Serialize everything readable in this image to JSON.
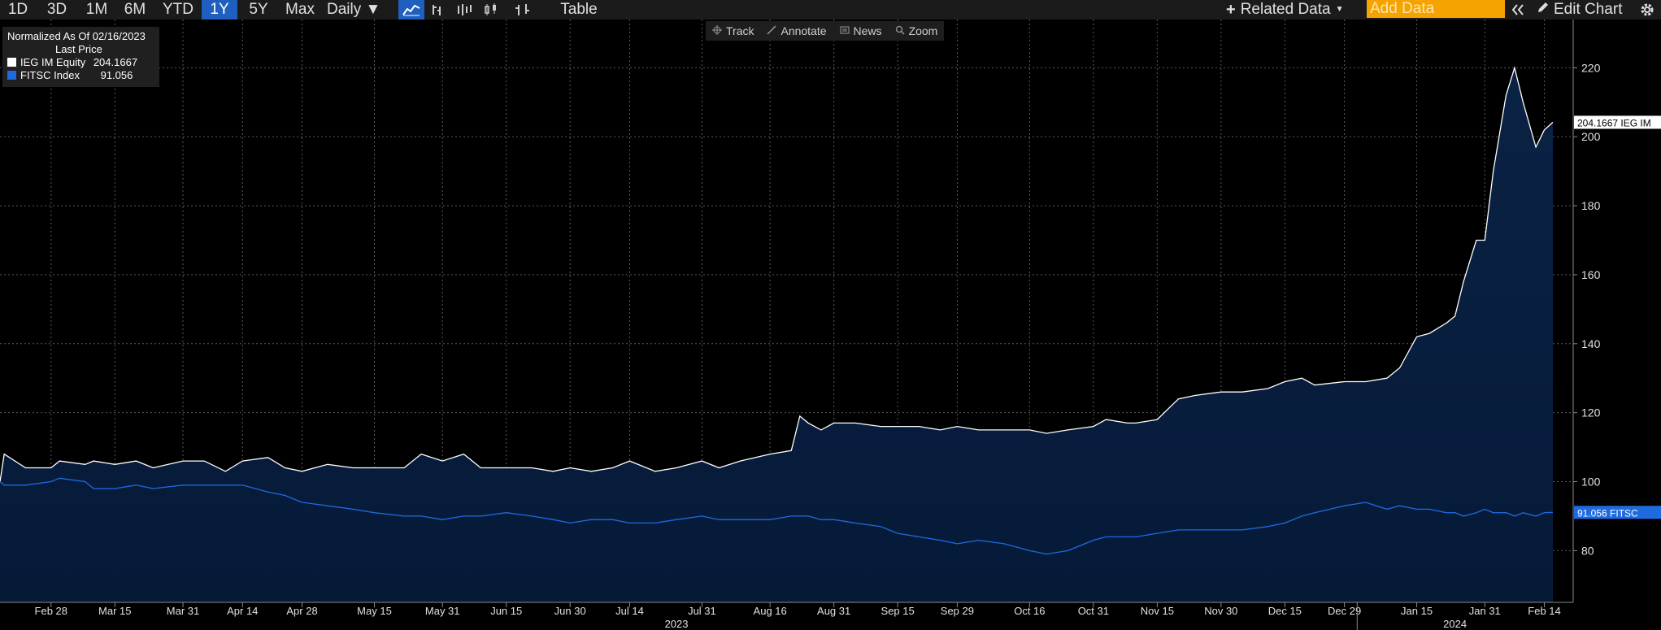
{
  "toolbar": {
    "ranges": [
      "1D",
      "3D",
      "1M",
      "6M",
      "YTD",
      "1Y",
      "5Y",
      "Max"
    ],
    "active_range": "1Y",
    "frequency": "Daily ▼",
    "table_label": "Table",
    "related_data": "Related Data",
    "add_data_placeholder": "Add Data",
    "edit_chart": "Edit Chart"
  },
  "chart_tools": [
    "Track",
    "Annotate",
    "News",
    "Zoom"
  ],
  "legend": {
    "title": "Normalized As Of 02/16/2023",
    "subtitle": "Last Price",
    "series": [
      {
        "name": "IEG IM Equity",
        "value": "204.1667",
        "color": "#ffffff"
      },
      {
        "name": "FITSC Index",
        "value": "91.056",
        "color": "#1e6be0"
      }
    ]
  },
  "chart_data": {
    "type": "area",
    "y_ticks": [
      80,
      100,
      120,
      140,
      160,
      180,
      200,
      220
    ],
    "ylim": [
      65,
      234
    ],
    "x_tick_labels": [
      "Feb 28",
      "Mar 15",
      "Mar 31",
      "Apr 14",
      "Apr 28",
      "May 15",
      "May 31",
      "Jun 15",
      "Jun 30",
      "Jul 14",
      "Jul 31",
      "Aug 16",
      "Aug 31",
      "Sep 15",
      "Sep 29",
      "Oct 16",
      "Oct 31",
      "Nov 15",
      "Nov 30",
      "Dec 15",
      "Dec 29",
      "Jan 15",
      "Jan 31",
      "Feb 14"
    ],
    "year_labels": [
      "2023",
      "2024"
    ],
    "grid": true,
    "x_dates": [
      "2023-02-16",
      "2023-02-17",
      "2023-02-22",
      "2023-02-28",
      "2023-03-02",
      "2023-03-08",
      "2023-03-10",
      "2023-03-15",
      "2023-03-20",
      "2023-03-24",
      "2023-03-31",
      "2023-04-05",
      "2023-04-10",
      "2023-04-14",
      "2023-04-20",
      "2023-04-24",
      "2023-04-28",
      "2023-05-04",
      "2023-05-10",
      "2023-05-15",
      "2023-05-22",
      "2023-05-26",
      "2023-05-31",
      "2023-06-05",
      "2023-06-09",
      "2023-06-15",
      "2023-06-21",
      "2023-06-26",
      "2023-06-30",
      "2023-07-05",
      "2023-07-10",
      "2023-07-14",
      "2023-07-20",
      "2023-07-25",
      "2023-07-31",
      "2023-08-04",
      "2023-08-09",
      "2023-08-16",
      "2023-08-21",
      "2023-08-23",
      "2023-08-25",
      "2023-08-28",
      "2023-08-31",
      "2023-09-05",
      "2023-09-11",
      "2023-09-15",
      "2023-09-20",
      "2023-09-25",
      "2023-09-29",
      "2023-10-04",
      "2023-10-10",
      "2023-10-16",
      "2023-10-20",
      "2023-10-25",
      "2023-10-31",
      "2023-11-03",
      "2023-11-08",
      "2023-11-10",
      "2023-11-15",
      "2023-11-20",
      "2023-11-24",
      "2023-11-30",
      "2023-12-05",
      "2023-12-11",
      "2023-12-15",
      "2023-12-19",
      "2023-12-22",
      "2023-12-29",
      "2024-01-03",
      "2024-01-08",
      "2024-01-11",
      "2024-01-15",
      "2024-01-18",
      "2024-01-22",
      "2024-01-24",
      "2024-01-26",
      "2024-01-29",
      "2024-01-31",
      "2024-02-02",
      "2024-02-05",
      "2024-02-07",
      "2024-02-09",
      "2024-02-12",
      "2024-02-14",
      "2024-02-16"
    ],
    "series": [
      {
        "name": "IEG IM Equity",
        "color": "#ffffff",
        "last_value": "204.1667 IEG IM",
        "values": [
          100,
          108,
          104,
          104,
          106,
          105,
          106,
          105,
          106,
          104,
          106,
          106,
          103,
          106,
          107,
          104,
          103,
          105,
          104,
          104,
          104,
          108,
          106,
          108,
          104,
          104,
          104,
          103,
          104,
          103,
          104,
          106,
          103,
          104,
          106,
          104,
          106,
          108,
          109,
          119,
          117,
          115,
          117,
          117,
          116,
          116,
          116,
          115,
          116,
          115,
          115,
          115,
          114,
          115,
          116,
          118,
          117,
          117,
          118,
          124,
          125,
          126,
          126,
          127,
          129,
          130,
          128,
          129,
          129,
          130,
          133,
          142,
          143,
          146,
          148,
          158,
          170,
          170,
          190,
          212,
          220,
          210,
          197,
          202,
          204.2
        ]
      },
      {
        "name": "FITSC Index",
        "color": "#1e6be0",
        "last_value": "91.056  FITSC",
        "values": [
          100,
          99,
          99,
          100,
          101,
          100,
          98,
          98,
          99,
          98,
          99,
          99,
          99,
          99,
          97,
          96,
          94,
          93,
          92,
          91,
          90,
          90,
          89,
          90,
          90,
          91,
          90,
          89,
          88,
          89,
          89,
          88,
          88,
          89,
          90,
          89,
          89,
          89,
          90,
          90,
          90,
          89,
          89,
          88,
          87,
          85,
          84,
          83,
          82,
          83,
          82,
          80,
          79,
          80,
          83,
          84,
          84,
          84,
          85,
          86,
          86,
          86,
          86,
          87,
          88,
          90,
          91,
          93,
          94,
          92,
          93,
          92,
          92,
          91,
          91,
          90,
          91,
          92,
          91,
          91,
          90,
          91,
          90,
          91,
          91.1
        ]
      }
    ]
  }
}
